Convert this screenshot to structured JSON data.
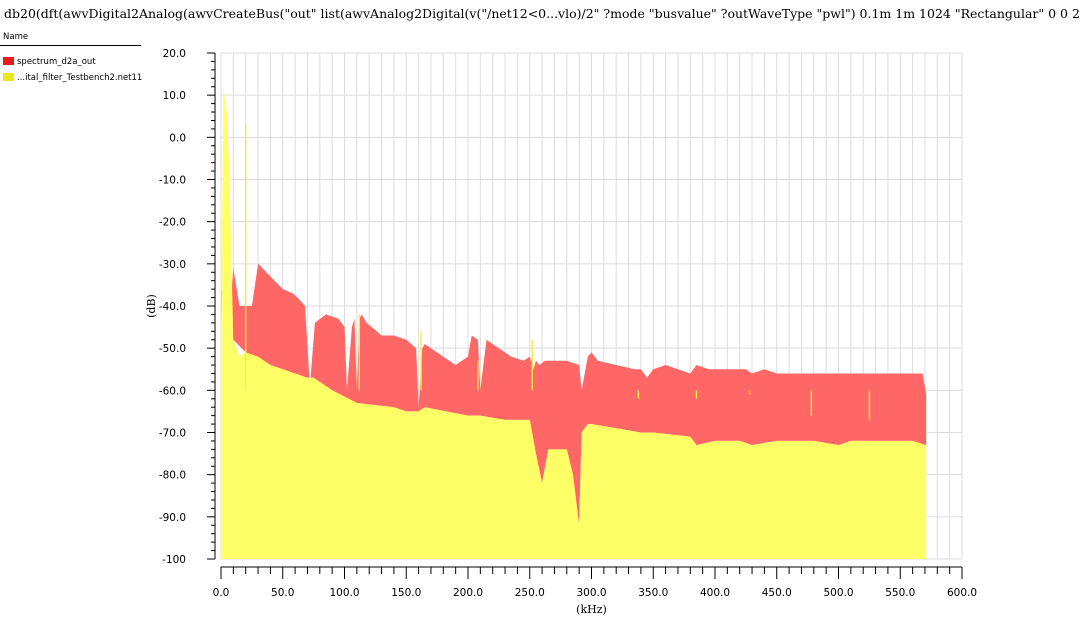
{
  "window": {
    "title": "db20(dft(awvDigital2Analog(awvCreateBus(\"out\" list(awvAnalog2Digital(v(\"/net12<0...vlo)/2\" ?mode \"busvalue\" ?outWaveType \"pwl\")  0.1m 1m 1024 \"Rectangular\" 0 0  2"
  },
  "legend": {
    "header": "Name",
    "items": [
      {
        "label": "spectrum_d2a_out",
        "color": "#e8191f"
      },
      {
        "label": "...ital_filter_Testbench2.net11",
        "color": "#e8e81a"
      }
    ]
  },
  "chart_data": {
    "type": "area",
    "xlabel": "(kHz)",
    "ylabel": "(dB)",
    "xlim": [
      0,
      600
    ],
    "ylim": [
      -100,
      20
    ],
    "grid": true,
    "xticks": [
      "0.0",
      "50.0",
      "100.0",
      "150.0",
      "200.0",
      "250.0",
      "300.0",
      "350.0",
      "400.0",
      "450.0",
      "500.0",
      "550.0",
      "600.0"
    ],
    "yticks": [
      "20.0",
      "10.0",
      "0.0",
      "-10.0",
      "-20.0",
      "-30.0",
      "-40.0",
      "-50.0",
      "-60.0",
      "-70.0",
      "-80.0",
      "-90.0",
      "-100"
    ],
    "series": [
      {
        "name": "spectrum_d2a_out",
        "color": "#ff6666",
        "upper_envelope": {
          "x": [
            0,
            3,
            7,
            10,
            15,
            20,
            25,
            30,
            40,
            50,
            58,
            62,
            65,
            68,
            72,
            76,
            85,
            95,
            100,
            102,
            106,
            108,
            110,
            112,
            114,
            118,
            130,
            140,
            150,
            158,
            160,
            163,
            165,
            170,
            180,
            190,
            200,
            203,
            208,
            210,
            215,
            225,
            235,
            245,
            250,
            253,
            255,
            258,
            262,
            270,
            280,
            290,
            292,
            297,
            300,
            305,
            320,
            335,
            340,
            345,
            350,
            360,
            380,
            385,
            395,
            410,
            425,
            430,
            440,
            450,
            460,
            470,
            480,
            485,
            495,
            510,
            525,
            530,
            535,
            540,
            550,
            560,
            568,
            571
          ],
          "y": [
            -36,
            -42,
            -43,
            -31,
            -40,
            -40,
            -40,
            -30,
            -33,
            -36,
            -37,
            -38,
            -39,
            -40,
            -59,
            -44,
            -42,
            -43,
            -45,
            -60,
            -45,
            -43,
            -60,
            -43,
            -42,
            -44,
            -47,
            -47,
            -48,
            -50,
            -64,
            -50,
            -49,
            -50,
            -52,
            -54,
            -52,
            -47,
            -48,
            -60,
            -48,
            -50,
            -52,
            -53,
            -52,
            -55,
            -53,
            -54,
            -53,
            -53,
            -53,
            -54,
            -60,
            -52,
            -51,
            -53,
            -54,
            -55,
            -55,
            -57,
            -55,
            -54,
            -56,
            -54,
            -55,
            -55,
            -55,
            -56,
            -55,
            -56,
            -56,
            -56,
            -56,
            -56,
            -56,
            -56,
            -56,
            -56,
            -56,
            -56,
            -56,
            -56,
            -56,
            -61
          ]
        },
        "lower_envelope": {
          "x": [
            0,
            10,
            20,
            40,
            60,
            70,
            75,
            90,
            110,
            140,
            150,
            160,
            165,
            200,
            210,
            230,
            250,
            255,
            260,
            265,
            280,
            285,
            290,
            292,
            297,
            300,
            320,
            340,
            350,
            380,
            385,
            400,
            420,
            430,
            450,
            480,
            500,
            510,
            520,
            540,
            560,
            571
          ],
          "y": [
            -45,
            -48,
            -51,
            -54,
            -56,
            -57,
            -57,
            -60,
            -63,
            -64,
            -65,
            -65,
            -64,
            -66,
            -66,
            -67,
            -67,
            -75,
            -82,
            -74,
            -74,
            -80,
            -92,
            -70,
            -68,
            -68,
            -69,
            -70,
            -70,
            -71,
            -73,
            -72,
            -72,
            -73,
            -72,
            -72,
            -73,
            -72,
            -72,
            -72,
            -72,
            -73
          ]
        }
      },
      {
        "name": "...ital_filter_Testbench2.net11",
        "color": "#ffff66",
        "floor": -100,
        "upper_envelope": {
          "x": [
            0,
            2,
            5,
            7,
            10,
            15,
            20,
            30,
            40,
            50,
            60,
            70,
            75,
            90,
            110,
            140,
            150,
            160,
            165,
            200,
            210,
            230,
            250,
            255,
            260,
            265,
            280,
            285,
            290,
            292,
            297,
            300,
            320,
            340,
            350,
            380,
            385,
            400,
            420,
            430,
            450,
            480,
            500,
            510,
            520,
            540,
            560,
            571
          ],
          "y": [
            -45,
            12,
            5,
            -10,
            -48,
            -52,
            -51,
            -52,
            -54,
            -55,
            -56,
            -57,
            -57,
            -60,
            -63,
            -64,
            -65,
            -65,
            -64,
            -66,
            -66,
            -67,
            -67,
            -75,
            -82,
            -74,
            -74,
            -80,
            -92,
            -70,
            -68,
            -68,
            -69,
            -70,
            -70,
            -71,
            -73,
            -72,
            -72,
            -73,
            -72,
            -72,
            -73,
            -72,
            -72,
            -72,
            -72,
            -73
          ]
        },
        "spikes": {
          "x": [
            20,
            112,
            162,
            208,
            252,
            338,
            385,
            428,
            478,
            525
          ],
          "y": [
            3,
            -42,
            -46,
            -53,
            -48,
            -62,
            -62,
            -61,
            -66,
            -67
          ]
        }
      }
    ]
  }
}
